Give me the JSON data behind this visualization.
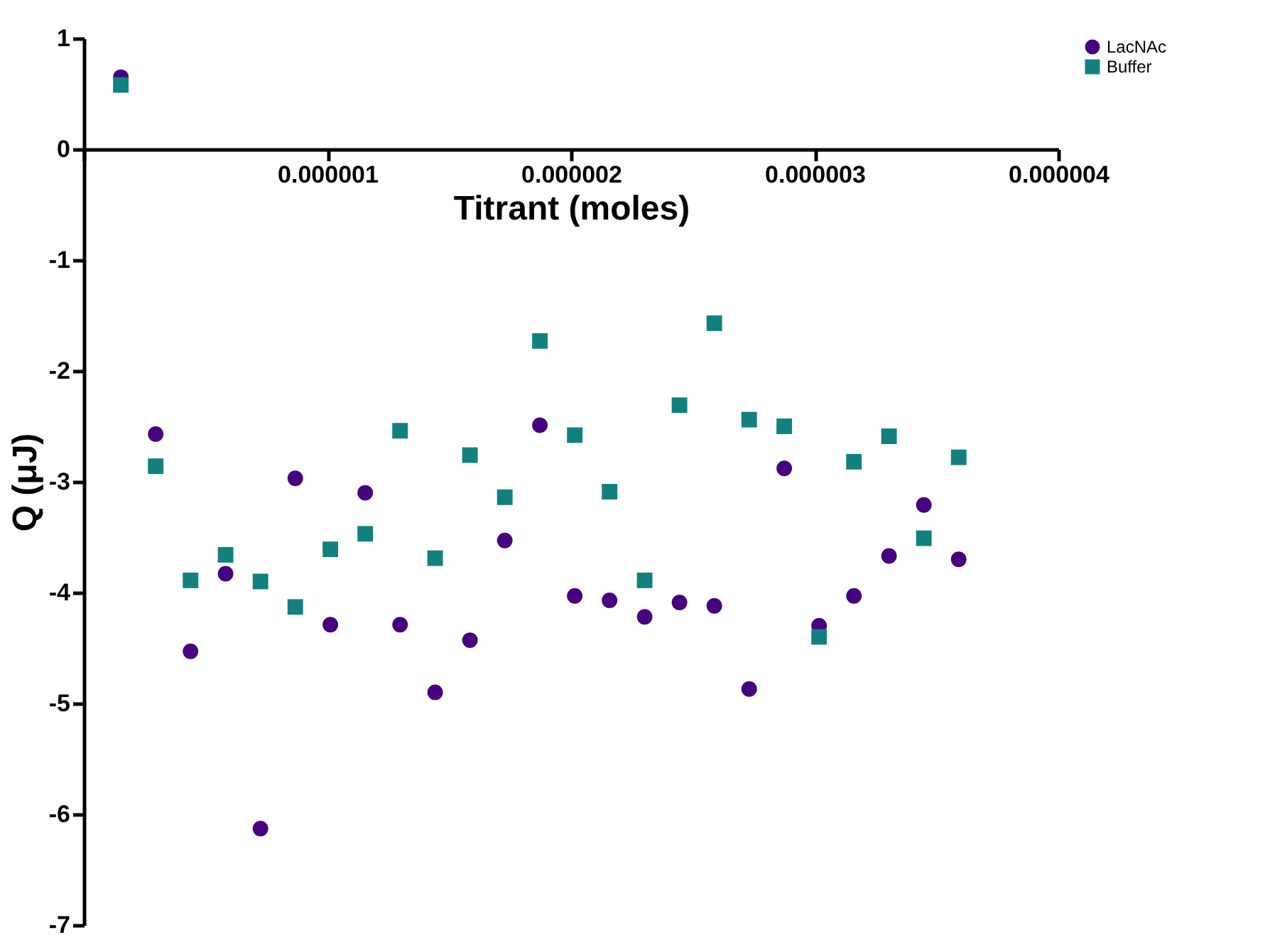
{
  "chart_data": {
    "type": "scatter",
    "xlabel": "Titrant (moles)",
    "ylabel": "Q (μJ)",
    "x": [
      1.52e-07,
      2.95e-07,
      4.38e-07,
      5.82e-07,
      7.25e-07,
      8.68e-07,
      1.012e-06,
      1.155e-06,
      1.298e-06,
      1.442e-06,
      1.585e-06,
      1.728e-06,
      1.872e-06,
      2.015e-06,
      2.158e-06,
      2.302e-06,
      2.445e-06,
      2.588e-06,
      2.731e-06,
      2.875e-06,
      3.018e-06,
      3.161e-06,
      3.305e-06,
      3.448e-06,
      3.591e-06
    ],
    "series": [
      {
        "name": "LacNAc",
        "color": "#46027f",
        "marker": "circle",
        "values": [
          0.65,
          -2.57,
          -4.53,
          -3.83,
          -6.13,
          -2.97,
          -4.29,
          -3.1,
          -4.29,
          -4.9,
          -4.43,
          -3.53,
          -2.49,
          -4.03,
          -4.07,
          -4.22,
          -4.09,
          -4.12,
          -4.87,
          -2.88,
          -4.3,
          -4.03,
          -3.67,
          -3.21,
          -3.7
        ]
      },
      {
        "name": "Buffer",
        "color": "#138080",
        "marker": "square",
        "values": [
          0.58,
          -2.86,
          -3.89,
          -3.66,
          -3.9,
          -4.13,
          -3.61,
          -3.47,
          -2.54,
          -3.69,
          -2.76,
          -3.14,
          -1.73,
          -2.58,
          -3.09,
          -3.89,
          -2.31,
          -1.57,
          -2.44,
          -2.5,
          -4.4,
          -2.82,
          -2.59,
          -3.51,
          -2.78
        ]
      }
    ],
    "xlim": [
      0,
      4e-06
    ],
    "xticks": [
      {
        "value": 0,
        "label": null
      },
      {
        "value": 1e-06,
        "label": "0.000001"
      },
      {
        "value": 2e-06,
        "label": "0.000002"
      },
      {
        "value": 3e-06,
        "label": "0.000003"
      },
      {
        "value": 4e-06,
        "label": "0.000004"
      }
    ],
    "ylim": [
      -7,
      1
    ],
    "yticks": [
      -7,
      -6,
      -5,
      -4,
      -3,
      -2,
      -1,
      0,
      1
    ],
    "grid": false,
    "legend": "top right"
  }
}
